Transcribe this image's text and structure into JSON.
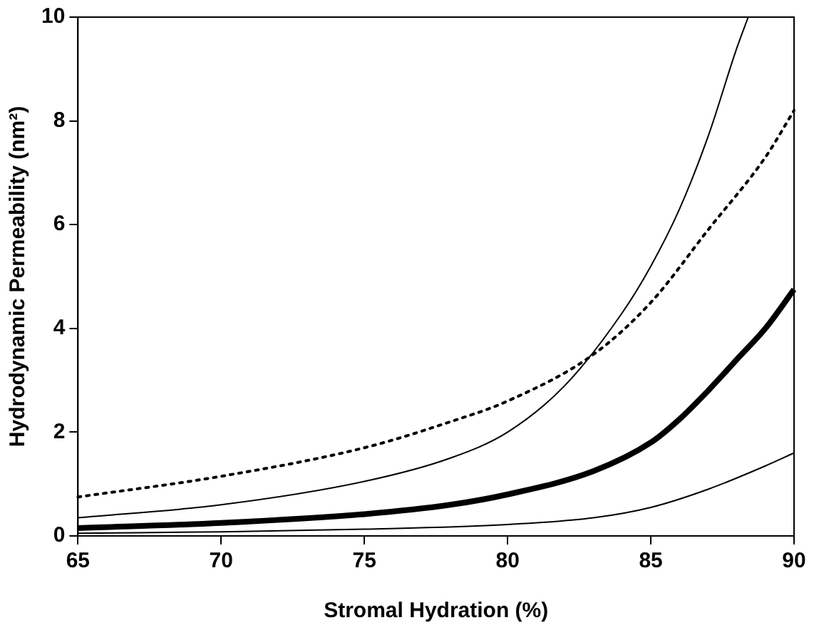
{
  "chart_data": {
    "type": "line",
    "xlabel": "Stromal Hydration (%)",
    "ylabel": "Hydrodynamic Permeability (nm²)",
    "xlim": [
      65,
      90
    ],
    "ylim": [
      0,
      10
    ],
    "xticks": [
      65,
      70,
      75,
      80,
      85,
      90
    ],
    "yticks": [
      0,
      2,
      4,
      6,
      8,
      10
    ],
    "grid": false,
    "legend": false,
    "marker": "none",
    "series": [
      {
        "color": "#000000",
        "line_style": "solid",
        "x": [
          65,
          70,
          75,
          78,
          80,
          82,
          84,
          85,
          86,
          87,
          88,
          88.4
        ],
        "values": [
          0.35,
          0.6,
          1.05,
          1.5,
          2.0,
          2.9,
          4.3,
          5.2,
          6.3,
          7.7,
          9.4,
          10
        ]
      },
      {
        "color": "#000000",
        "line_style": "dotted",
        "x": [
          65,
          70,
          75,
          78,
          80,
          83,
          85,
          87,
          89,
          90
        ],
        "values": [
          0.75,
          1.15,
          1.7,
          2.2,
          2.6,
          3.5,
          4.5,
          5.9,
          7.3,
          8.2
        ]
      },
      {
        "color": "#000000",
        "line_style": "solid",
        "x": [
          65,
          70,
          75,
          78,
          80,
          83,
          85,
          86,
          87,
          88,
          89,
          90
        ],
        "values": [
          0.15,
          0.25,
          0.42,
          0.6,
          0.8,
          1.25,
          1.8,
          2.25,
          2.8,
          3.4,
          4.0,
          4.75
        ]
      },
      {
        "color": "#000000",
        "line_style": "solid",
        "x": [
          65,
          70,
          75,
          80,
          83,
          85,
          87,
          89,
          90
        ],
        "values": [
          0.05,
          0.08,
          0.13,
          0.22,
          0.35,
          0.55,
          0.9,
          1.35,
          1.6
        ]
      }
    ]
  }
}
